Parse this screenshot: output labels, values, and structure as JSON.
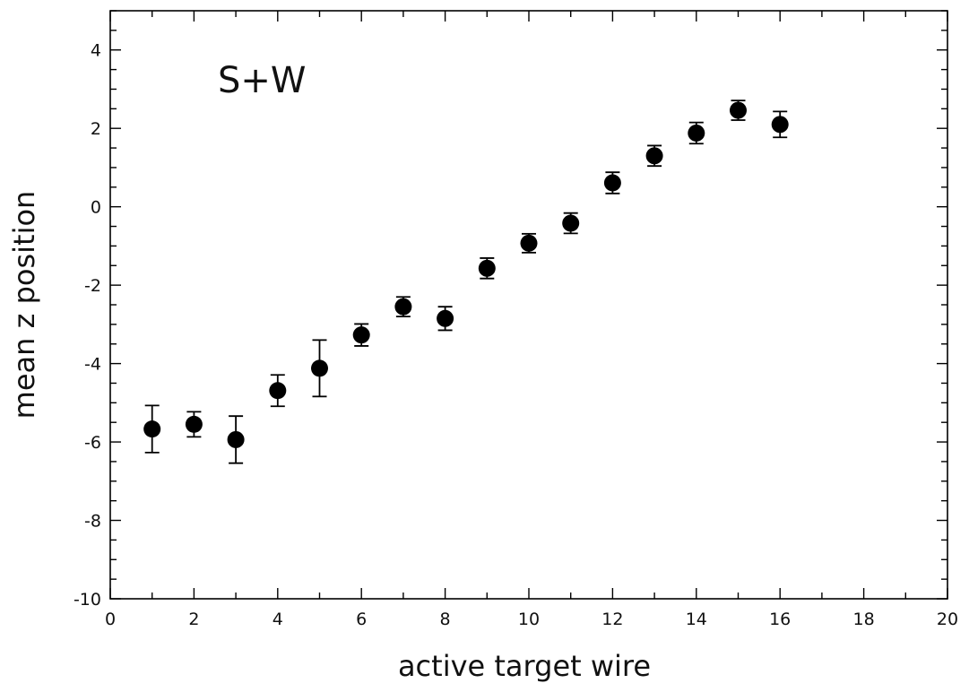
{
  "chart_data": {
    "type": "scatter",
    "title": "",
    "annotation": "S+W",
    "xlabel": "active target wire",
    "ylabel": "mean z position",
    "xlim": [
      0,
      20
    ],
    "ylim": [
      -10,
      5
    ],
    "x_ticks": [
      0,
      2,
      4,
      6,
      8,
      10,
      12,
      14,
      16,
      18,
      20
    ],
    "y_ticks": [
      -10,
      -8,
      -6,
      -4,
      -2,
      0,
      2,
      4
    ],
    "x_tick_labels": [
      "0",
      "2",
      "4",
      "6",
      "8",
      "10",
      "12",
      "14",
      "16",
      "18",
      "20"
    ],
    "y_tick_labels": [
      "-10",
      "-8",
      "-6",
      "-4",
      "-2",
      "0",
      "2",
      "4"
    ],
    "x_minor_step": 1,
    "y_minor_step": 0.5,
    "grid": false,
    "marker_color": "#000000",
    "series": [
      {
        "x": [
          1,
          2,
          3,
          4,
          5,
          6,
          7,
          8,
          9,
          10,
          11,
          12,
          13,
          14,
          15,
          16
        ],
        "y": [
          -5.67,
          -5.55,
          -5.94,
          -4.69,
          -4.12,
          -3.27,
          -2.55,
          -2.85,
          -1.57,
          -0.93,
          -0.42,
          0.61,
          1.3,
          1.88,
          2.46,
          2.1
        ],
        "err": [
          0.6,
          0.32,
          0.6,
          0.4,
          0.72,
          0.28,
          0.25,
          0.3,
          0.26,
          0.24,
          0.26,
          0.27,
          0.26,
          0.27,
          0.25,
          0.33
        ]
      }
    ]
  }
}
